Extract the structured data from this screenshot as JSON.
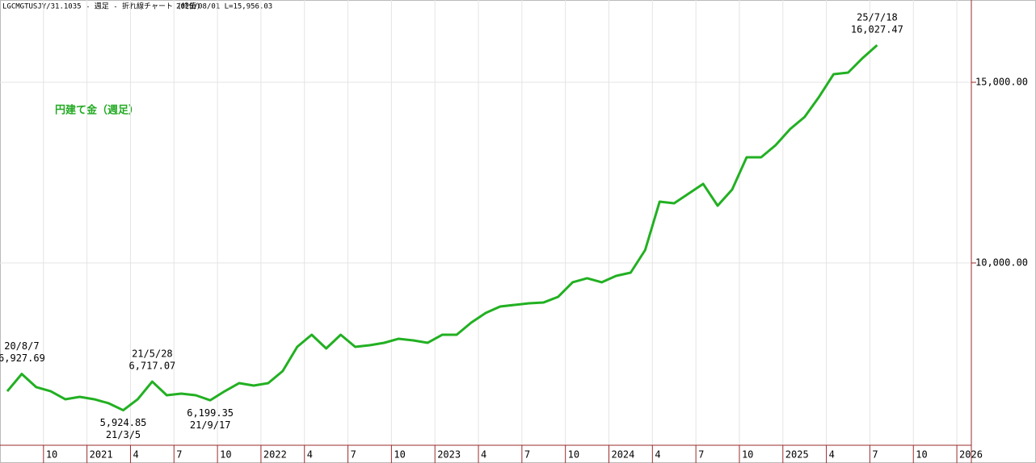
{
  "chart_data": {
    "type": "line",
    "title": "LGCMGTUSJY/31.1035 - 週足 - 折れ線チャート (終値)",
    "subtitle": "2025/08/01 L=15,956.03",
    "x": [
      "2020-07",
      "2020-08",
      "2020-09",
      "2020-10",
      "2020-11",
      "2020-12",
      "2021-01",
      "2021-02",
      "2021-03",
      "2021-04",
      "2021-05",
      "2021-06",
      "2021-07",
      "2021-08",
      "2021-09",
      "2021-10",
      "2021-11",
      "2021-12",
      "2022-01",
      "2022-02",
      "2022-03",
      "2022-04",
      "2022-05",
      "2022-06",
      "2022-07",
      "2022-08",
      "2022-09",
      "2022-10",
      "2022-11",
      "2022-12",
      "2023-01",
      "2023-02",
      "2023-03",
      "2023-04",
      "2023-05",
      "2023-06",
      "2023-07",
      "2023-08",
      "2023-09",
      "2023-10",
      "2023-11",
      "2023-12",
      "2024-01",
      "2024-02",
      "2024-03",
      "2024-04",
      "2024-05",
      "2024-06",
      "2024-07",
      "2024-08",
      "2024-09",
      "2024-10",
      "2024-11",
      "2024-12",
      "2025-01",
      "2025-02",
      "2025-03",
      "2025-04",
      "2025-05",
      "2025-06",
      "2025-07"
    ],
    "series": [
      {
        "name": "円建て金（週足）",
        "color": "#22b022",
        "values": [
          6450,
          6927.69,
          6563,
          6450,
          6228,
          6295,
          6228,
          6116,
          5924.85,
          6228,
          6717.07,
          6339,
          6384,
          6339,
          6199.35,
          6450,
          6674,
          6607,
          6674,
          7009,
          7679,
          8013,
          7634,
          8013,
          7679,
          7723,
          7790,
          7902,
          7857,
          7790,
          8013,
          8013,
          8348,
          8617,
          8795,
          8840,
          8884,
          8907,
          9063,
          9465,
          9576,
          9465,
          9643,
          9732,
          10357,
          11697,
          11652,
          11920,
          12188,
          11585,
          12031,
          12924,
          12924,
          13259,
          13706,
          14040,
          14599,
          15224,
          15268,
          15670,
          16027.47
        ]
      }
    ],
    "annotations": [
      {
        "x": "2020-08",
        "date": "20/8/7",
        "label": "6,927.69",
        "position": "above"
      },
      {
        "x": "2021-03",
        "date": "21/3/5",
        "label": "5,924.85",
        "position": "below"
      },
      {
        "x": "2021-05",
        "date": "21/5/28",
        "label": "6,717.07",
        "position": "above"
      },
      {
        "x": "2021-09",
        "date": "21/9/17",
        "label": "6,199.35",
        "position": "below"
      },
      {
        "x": "2025-07",
        "date": "25/7/18",
        "label": "16,027.47",
        "position": "above"
      }
    ],
    "xlim": [
      "2020-07",
      "2026-02"
    ],
    "xticks": [
      {
        "value": "2020-10",
        "label": "10"
      },
      {
        "value": "2021-01",
        "label": "2021"
      },
      {
        "value": "2021-04",
        "label": "4"
      },
      {
        "value": "2021-07",
        "label": "7"
      },
      {
        "value": "2021-10",
        "label": "10"
      },
      {
        "value": "2022-01",
        "label": "2022"
      },
      {
        "value": "2022-04",
        "label": "4"
      },
      {
        "value": "2022-07",
        "label": "7"
      },
      {
        "value": "2022-10",
        "label": "10"
      },
      {
        "value": "2023-01",
        "label": "2023"
      },
      {
        "value": "2023-04",
        "label": "4"
      },
      {
        "value": "2023-07",
        "label": "7"
      },
      {
        "value": "2023-10",
        "label": "10"
      },
      {
        "value": "2024-01",
        "label": "2024"
      },
      {
        "value": "2024-04",
        "label": "4"
      },
      {
        "value": "2024-07",
        "label": "7"
      },
      {
        "value": "2024-10",
        "label": "10"
      },
      {
        "value": "2025-01",
        "label": "2025"
      },
      {
        "value": "2025-04",
        "label": "4"
      },
      {
        "value": "2025-07",
        "label": "7"
      },
      {
        "value": "2025-10",
        "label": "10"
      },
      {
        "value": "2026-01",
        "label": "2026"
      }
    ],
    "ylim": [
      4955,
      17277
    ],
    "yticks": [
      {
        "value": 10000,
        "label": "10,000.00"
      },
      {
        "value": 15000,
        "label": "15,000.00"
      }
    ],
    "grid": true
  }
}
